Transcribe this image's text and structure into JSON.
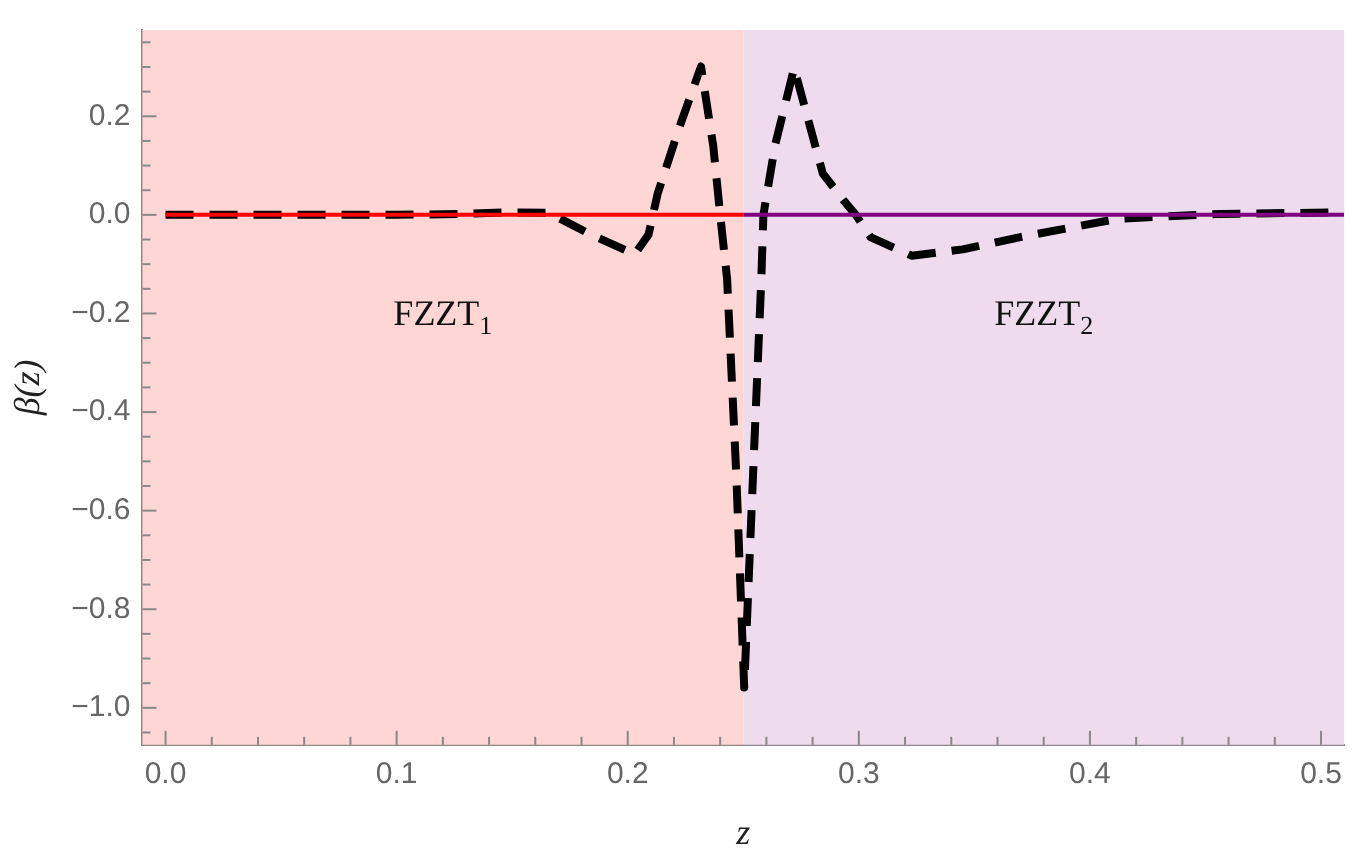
{
  "chart_data": {
    "type": "line",
    "xlabel": "z",
    "ylabel": "β(z)",
    "xlim": [
      -0.01,
      0.51
    ],
    "ylim": [
      -1.075,
      0.375
    ],
    "xticks": [
      {
        "value": 0,
        "label": "0.0"
      },
      {
        "value": 0.02,
        "label": null
      },
      {
        "value": 0.04,
        "label": null
      },
      {
        "value": 0.06,
        "label": null
      },
      {
        "value": 0.08,
        "label": null
      },
      {
        "value": 0.1,
        "label": "0.1"
      },
      {
        "value": 0.12,
        "label": null
      },
      {
        "value": 0.14,
        "label": null
      },
      {
        "value": 0.16,
        "label": null
      },
      {
        "value": 0.18,
        "label": null
      },
      {
        "value": 0.2,
        "label": "0.2"
      },
      {
        "value": 0.22,
        "label": null
      },
      {
        "value": 0.24,
        "label": null
      },
      {
        "value": 0.26,
        "label": null
      },
      {
        "value": 0.28,
        "label": null
      },
      {
        "value": 0.3,
        "label": "0.3"
      },
      {
        "value": 0.32,
        "label": null
      },
      {
        "value": 0.34,
        "label": null
      },
      {
        "value": 0.36,
        "label": null
      },
      {
        "value": 0.38,
        "label": null
      },
      {
        "value": 0.4,
        "label": "0.4"
      },
      {
        "value": 0.42,
        "label": null
      },
      {
        "value": 0.44,
        "label": null
      },
      {
        "value": 0.46,
        "label": null
      },
      {
        "value": 0.48,
        "label": null
      },
      {
        "value": 0.5,
        "label": "0.5"
      }
    ],
    "yticks": [
      {
        "value": -1.05,
        "label": null
      },
      {
        "value": -1,
        "label": "−1.0"
      },
      {
        "value": -0.95,
        "label": null
      },
      {
        "value": -0.9,
        "label": null
      },
      {
        "value": -0.85,
        "label": null
      },
      {
        "value": -0.8,
        "label": "−0.8"
      },
      {
        "value": -0.75,
        "label": null
      },
      {
        "value": -0.7,
        "label": null
      },
      {
        "value": -0.65,
        "label": null
      },
      {
        "value": -0.6,
        "label": "−0.6"
      },
      {
        "value": -0.55,
        "label": null
      },
      {
        "value": -0.5,
        "label": null
      },
      {
        "value": -0.45,
        "label": null
      },
      {
        "value": -0.4,
        "label": "−0.4"
      },
      {
        "value": -0.35,
        "label": null
      },
      {
        "value": -0.3,
        "label": null
      },
      {
        "value": -0.25,
        "label": null
      },
      {
        "value": -0.2,
        "label": "−0.2"
      },
      {
        "value": -0.15,
        "label": null
      },
      {
        "value": -0.1,
        "label": null
      },
      {
        "value": -0.05,
        "label": null
      },
      {
        "value": 0,
        "label": "0.0"
      },
      {
        "value": 0.05,
        "label": null
      },
      {
        "value": 0.1,
        "label": null
      },
      {
        "value": 0.15,
        "label": null
      },
      {
        "value": 0.2,
        "label": "0.2"
      },
      {
        "value": 0.25,
        "label": null
      },
      {
        "value": 0.3,
        "label": null
      },
      {
        "value": 0.35,
        "label": null
      }
    ],
    "grid": false,
    "legend": false,
    "marker": "none",
    "bands": [
      {
        "axis": "x",
        "from": -0.01,
        "to": 0.25,
        "label": "FZZT$_{1}$",
        "color": "#ffd6d6"
      },
      {
        "axis": "x",
        "from": 0.25,
        "to": 0.51,
        "label": "FZZT$_{2}$",
        "color": "#eedcee"
      }
    ],
    "series": [
      {
        "color": "#ff0000",
        "line_style": "solid",
        "x": [
          0,
          0.25
        ],
        "values": [
          0,
          0
        ]
      },
      {
        "color": "#800080",
        "line_style": "solid",
        "x": [
          0.25,
          0.51
        ],
        "values": [
          0,
          0
        ]
      },
      {
        "color": "#000000",
        "line_style": "dashed",
        "x": [
          0,
          0.05,
          0.1,
          0.13,
          0.148,
          0.166,
          0.184,
          0.203,
          0.209,
          0.213,
          0.222,
          0.2317,
          0.237,
          0.24,
          0.243,
          0.247,
          0.2504,
          0.2542,
          0.2578,
          0.2587,
          0.2637,
          0.272,
          0.2844,
          0.2933,
          0.2987,
          0.305,
          0.323,
          0.345,
          0.37,
          0.412,
          0.456,
          0.51
        ],
        "values": [
          0,
          0,
          0,
          0.002,
          0.005,
          0.004,
          -0.04,
          -0.08,
          -0.04,
          0.044,
          0.173,
          0.301,
          0.14,
          0,
          -0.13,
          -0.53,
          -0.959,
          -0.53,
          -0.13,
          0,
          0.14,
          0.298,
          0.084,
          0.03,
          0,
          -0.045,
          -0.083,
          -0.07,
          -0.045,
          -0.008,
          0.002,
          0.005
        ]
      }
    ]
  }
}
